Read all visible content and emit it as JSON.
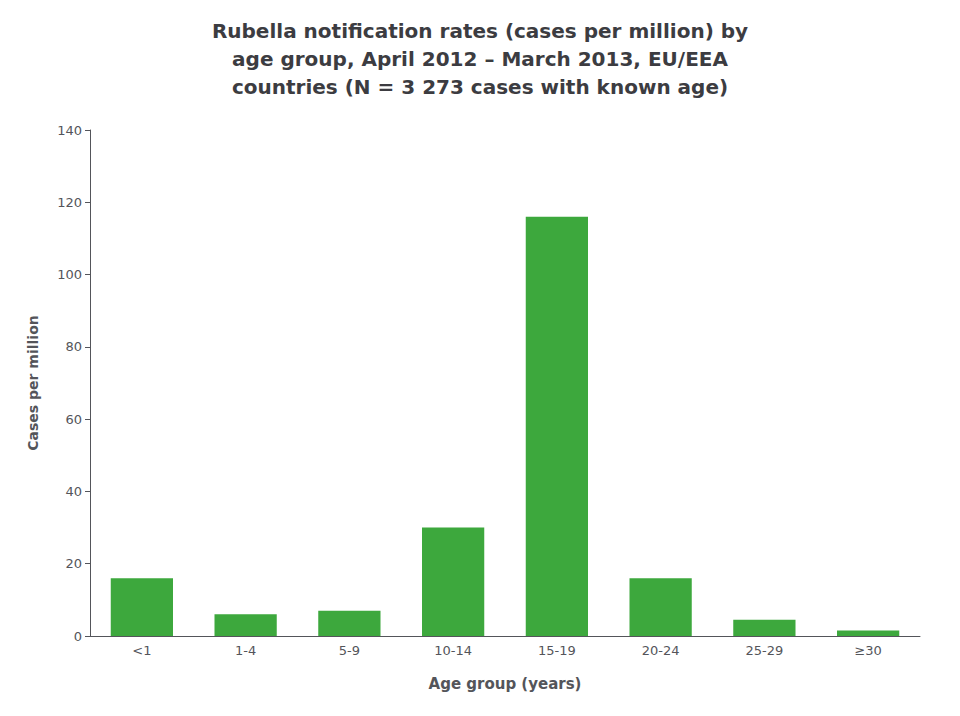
{
  "chart_data": {
    "type": "bar",
    "title": "Rubella notification rates (cases per million) by\nage group, April 2012 – March 2013, EU/EEA\ncountries (N = 3 273 cases with known age)",
    "categories": [
      "<1",
      "1-4",
      "5-9",
      "10-14",
      "15-19",
      "20-24",
      "25-29",
      "≥30"
    ],
    "values": [
      16,
      6,
      7,
      30,
      116,
      16,
      4.5,
      1.5
    ],
    "color": "#3DA83D",
    "xlabel": "Age group (years)",
    "ylabel": "Cases per million",
    "ylim": [
      0,
      140
    ],
    "yticks": [
      0,
      20,
      40,
      60,
      80,
      100,
      120,
      140
    ],
    "grid": false
  }
}
